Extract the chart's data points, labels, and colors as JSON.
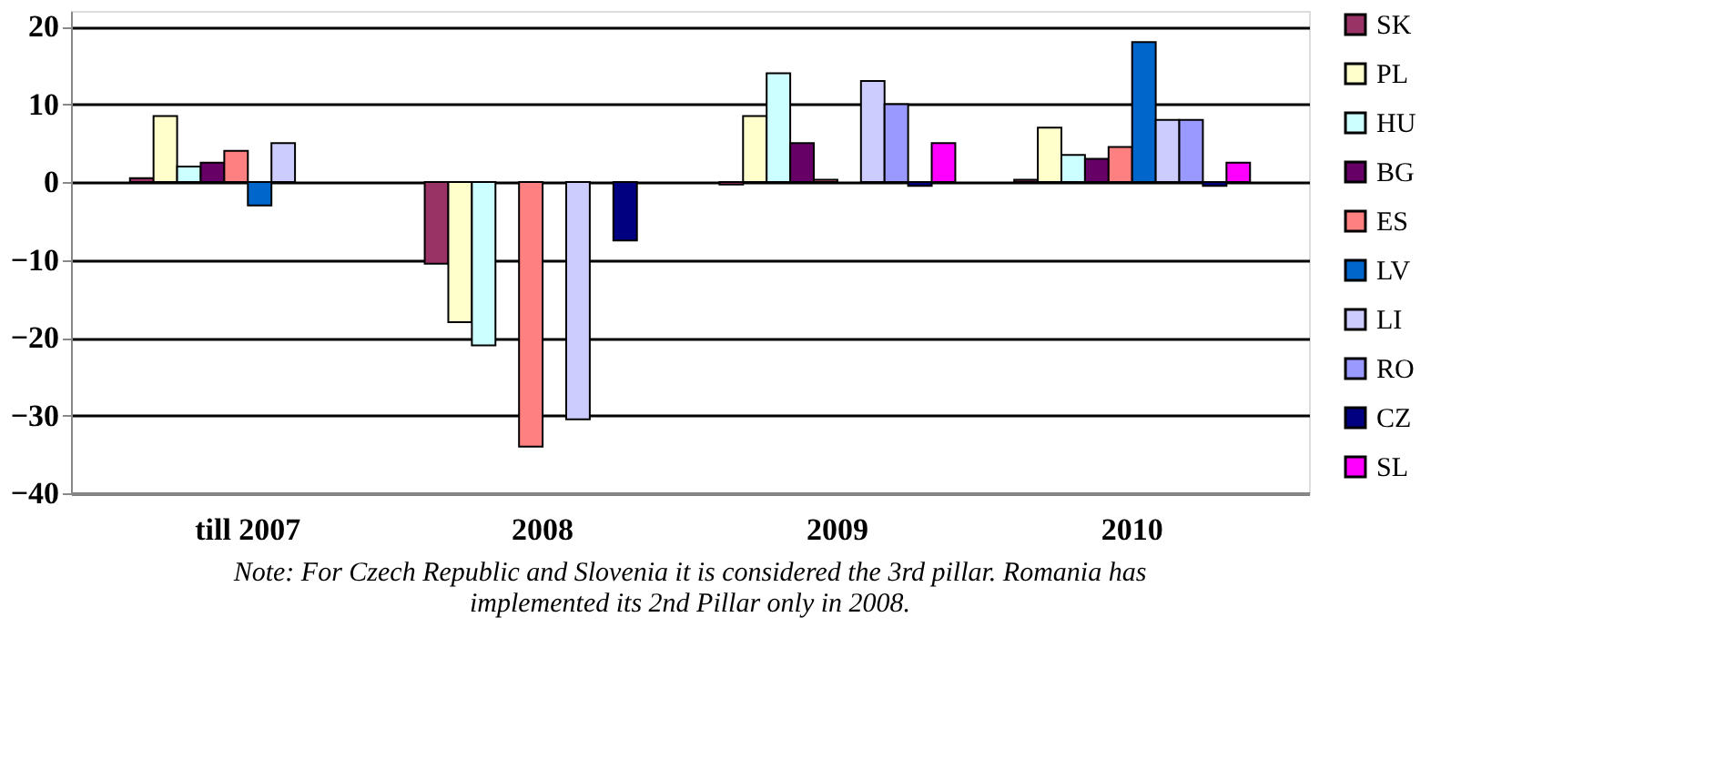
{
  "chart_data": {
    "type": "bar",
    "categories": [
      "till 2007",
      "2008",
      "2009",
      "2010"
    ],
    "series": [
      {
        "name": "SK",
        "color": "#993366",
        "values": [
          0.5,
          -10.5,
          -0.3,
          0.3
        ]
      },
      {
        "name": "PL",
        "color": "#ffffcc",
        "values": [
          8.5,
          -18,
          8.5,
          7
        ]
      },
      {
        "name": "HU",
        "color": "#ccffff",
        "values": [
          2,
          -21,
          14,
          3.5
        ]
      },
      {
        "name": "BG",
        "color": "#660066",
        "values": [
          2.5,
          null,
          5,
          3
        ]
      },
      {
        "name": "ES",
        "color": "#ff8080",
        "values": [
          4,
          -34,
          0.3,
          4.5
        ]
      },
      {
        "name": "LV",
        "color": "#0066cc",
        "values": [
          -3,
          null,
          null,
          18
        ]
      },
      {
        "name": "LI",
        "color": "#ccccff",
        "values": [
          5,
          -30.5,
          13,
          8
        ]
      },
      {
        "name": "RO",
        "color": "#9999ff",
        "values": [
          null,
          null,
          10,
          8
        ]
      },
      {
        "name": "CZ",
        "color": "#000080",
        "values": [
          null,
          -7.5,
          -0.5,
          -0.5
        ]
      },
      {
        "name": "SL",
        "color": "#ff00ff",
        "values": [
          null,
          null,
          5,
          2.5
        ]
      }
    ],
    "ylim": [
      -40,
      22
    ],
    "yticks": [
      -40,
      -30,
      -20,
      -10,
      0,
      10,
      20
    ],
    "grid": "y",
    "legend": "right",
    "annotations": [
      "Note: For Czech Republic and Slovenia it is considered the 3rd pillar. Romania has implemented its 2nd Pillar only in 2008."
    ]
  }
}
